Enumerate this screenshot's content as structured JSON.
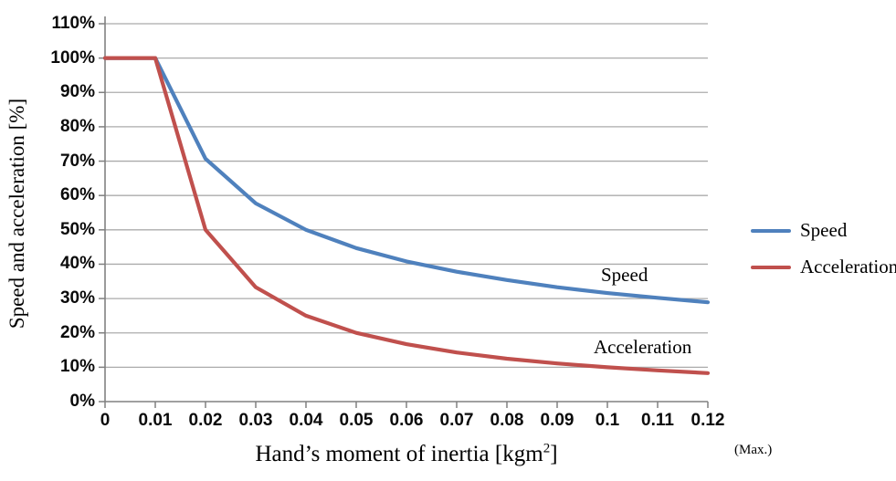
{
  "chart_data": {
    "type": "line",
    "x": [
      0,
      0.01,
      0.02,
      0.03,
      0.04,
      0.05,
      0.06,
      0.07,
      0.08,
      0.09,
      0.1,
      0.11,
      0.12
    ],
    "x_tick_labels": [
      "0",
      "0.01",
      "0.02",
      "0.03",
      "0.04",
      "0.05",
      "0.06",
      "0.07",
      "0.08",
      "0.09",
      "0.1",
      "0.11",
      "0.12"
    ],
    "y_tick_labels": [
      "0%",
      "10%",
      "20%",
      "30%",
      "40%",
      "50%",
      "60%",
      "70%",
      "80%",
      "90%",
      "100%",
      "110%"
    ],
    "series": [
      {
        "name": "Speed",
        "color": "#4F81BD",
        "values": [
          100,
          100,
          70.7,
          57.7,
          50,
          44.7,
          40.8,
          37.8,
          35.4,
          33.3,
          31.6,
          30.2,
          28.9
        ]
      },
      {
        "name": "Acceleration",
        "color": "#C0504D",
        "values": [
          100,
          100,
          50,
          33.3,
          25,
          20,
          16.7,
          14.3,
          12.5,
          11.1,
          10,
          9.1,
          8.3
        ]
      }
    ],
    "xlabel": {
      "pre": "Hand’s moment of inertia [kgm",
      "sup": "2",
      "post": "]"
    },
    "ylabel": "Speed and acceleration [%]",
    "xlim": [
      0,
      0.12
    ],
    "ylim": [
      0,
      110
    ],
    "grid": "horizontal",
    "grid_color": "#ABABAB",
    "axis_color": "#808080",
    "legend_position": "right",
    "annotations": {
      "speed_label": "Speed",
      "acceleration_label": "Acceleration",
      "max_label": "(Max.)"
    }
  },
  "legend": {
    "items": [
      {
        "label": "Speed",
        "color": "#4F81BD"
      },
      {
        "label": "Acceleration",
        "color": "#C0504D"
      }
    ]
  }
}
